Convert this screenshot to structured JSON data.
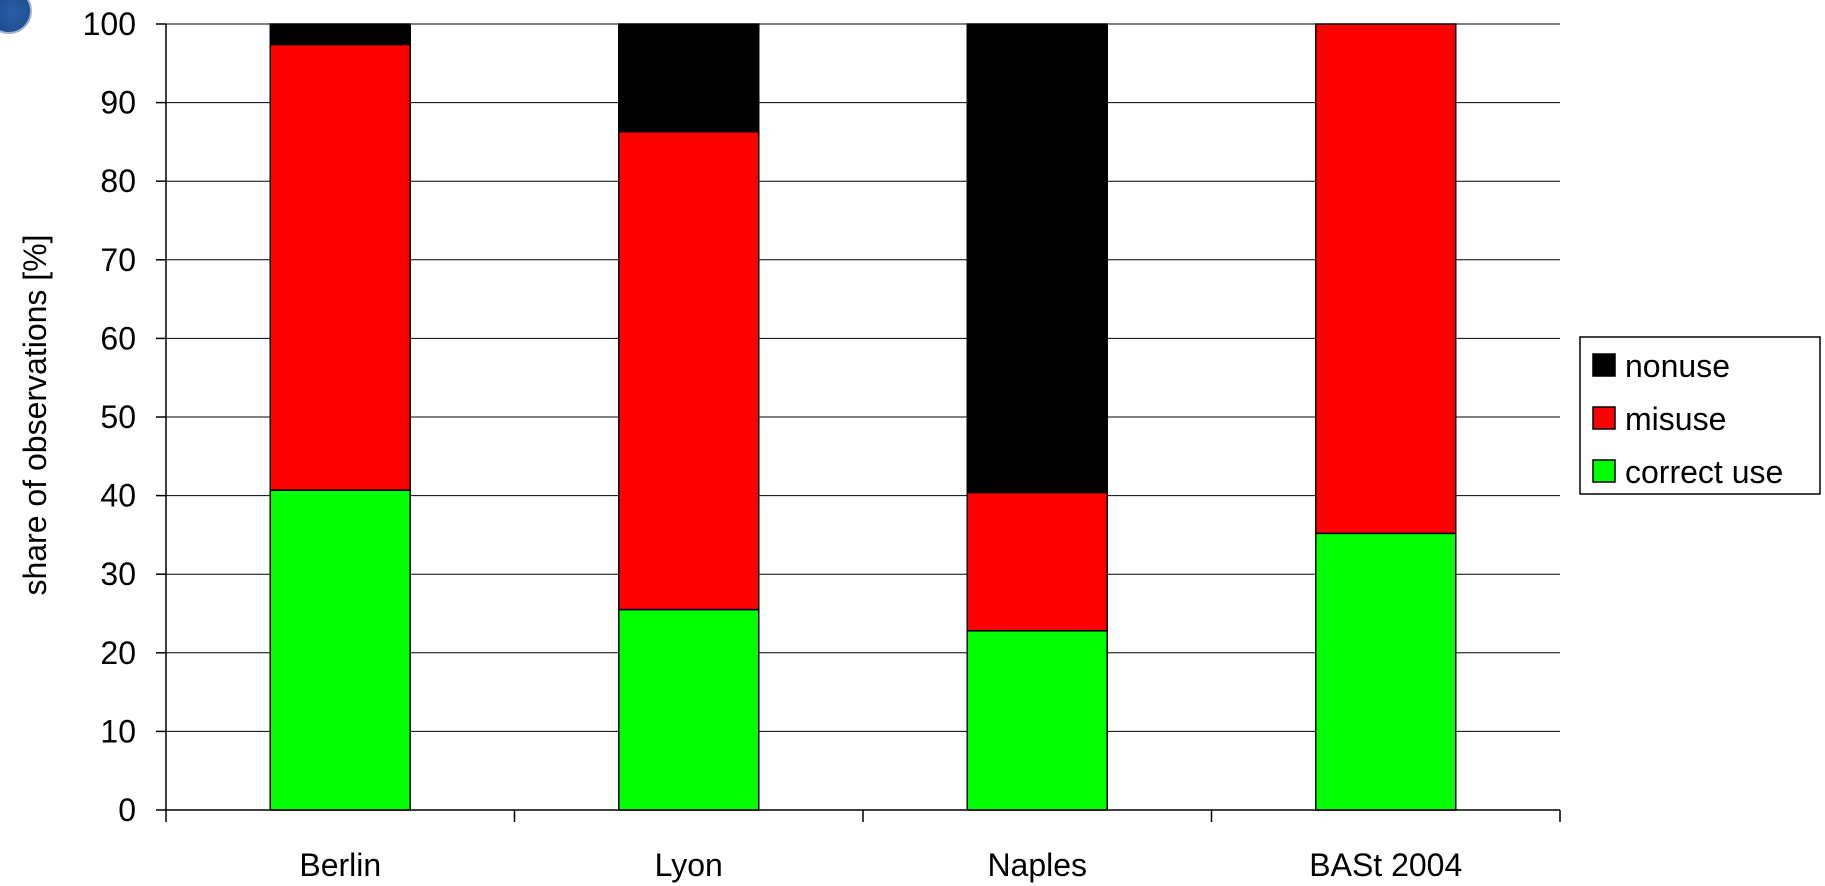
{
  "chart_data": {
    "type": "bar",
    "stacked": true,
    "categories": [
      "Berlin",
      "Lyon",
      "Naples",
      "BASt 2004"
    ],
    "series": [
      {
        "name": "correct use",
        "color": "#00ff00",
        "values": [
          40.7,
          25.5,
          22.8,
          35.2
        ]
      },
      {
        "name": "misuse",
        "color": "#ff0000",
        "values": [
          56.7,
          60.8,
          17.6,
          64.8
        ]
      },
      {
        "name": "nonuse",
        "color": "#000000",
        "values": [
          2.6,
          13.7,
          59.6,
          0
        ]
      }
    ],
    "xlabel": "",
    "ylabel": "share of observations [%]",
    "ylim": [
      0,
      100
    ],
    "yticks": [
      "0",
      "10",
      "20",
      "30",
      "40",
      "50",
      "60",
      "70",
      "80",
      "90",
      "100"
    ],
    "grid": "horizontal",
    "legend": {
      "placement": "right",
      "order": [
        "nonuse",
        "misuse",
        "correct use"
      ]
    }
  }
}
